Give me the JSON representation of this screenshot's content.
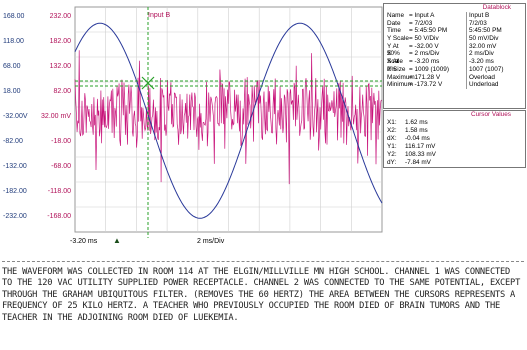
{
  "scope": {
    "channel_title": "Input B",
    "colors": {
      "ch_a": "#2a3a9a",
      "ch_b": "#c8137a",
      "cursor": "#2aa02a",
      "grid": "#cfcfcf"
    },
    "y_labels_a": [
      "168.00",
      "118.00",
      "68.00",
      "18.00",
      "-32.00V",
      "-82.00",
      "-132.00",
      "-182.00",
      "-232.00"
    ],
    "y_labels_b": [
      "232.00",
      "182.00",
      "132.00",
      "82.00",
      "32.00 mV",
      "-18.00",
      "-68.00",
      "-118.00",
      "-168.00"
    ],
    "x_start": "-3.20 ms",
    "x_scale": "2 ms/Div"
  },
  "datablock": {
    "title": "Datablock",
    "rows": [
      {
        "name": "Name",
        "a": "= Input A",
        "b": "Input B"
      },
      {
        "name": "Date",
        "a": "= 7/2/03",
        "b": "7/2/03"
      },
      {
        "name": "Time",
        "a": "= 5:45:50 PM",
        "b": "5:45:50 PM"
      },
      {
        "name": "Y Scale",
        "a": "= 50   V/Div",
        "b": "50   mV/Div"
      },
      {
        "name": "Y At 50%",
        "a": "= -32.00 V",
        "b": "32.00 mV"
      },
      {
        "name": "X Scale",
        "a": "= 2   ms/Div",
        "b": "2   ms/Div"
      },
      {
        "name": "X At 0%",
        "a": "= -3.20 ms",
        "b": "-3.20 ms"
      },
      {
        "name": "X Size",
        "a": "= 1009 (1009)",
        "b": "1007 (1007)"
      },
      {
        "name": "Maximum",
        "a": "= 171.28 V",
        "b": "Overload"
      },
      {
        "name": "Minimum",
        "a": "= -173.72 V",
        "b": "Underload"
      }
    ]
  },
  "cursor_values": {
    "title": "Cursor Values",
    "rows": [
      {
        "k": "X1:",
        "v": "1.62 ms"
      },
      {
        "k": "X2:",
        "v": "1.58 ms"
      },
      {
        "k": "dX:",
        "v": "-0.04 ms"
      },
      {
        "k": "Y1:",
        "v": "116.17 mV"
      },
      {
        "k": "Y2:",
        "v": "108.33 mV"
      },
      {
        "k": "dY:",
        "v": "-7.84 mV"
      }
    ]
  },
  "notes": "THE WAVEFORM WAS COLLECTED IN ROOM 114 AT THE ELGIN/MILLVILLE MN HIGH SCHOOL. CHANNEL 1 WAS CONNECTED TO THE 120 VAC UTILITY SUPPLIED POWER RECEPTACLE. CHANNEL 2 WAS CONNECTED TO THE SAME POTENTIAL, EXCEPT THROUGH THE GRAHAM UBIQUITOUS FILTER. (REMOVES THE 60 HERTZ) THE AREA BETWEEN THE CURSORS REPRESENTS A FREQUENCY OF 25 KILO HERTZ.  A TEACHER WHO PREVIOUSLY OCCUPIED THE ROOM DIED OF BRAIN TUMORS AND THE TEACHER IN THE ADJOINING ROOM DIED OF LUEKEMIA."
}
